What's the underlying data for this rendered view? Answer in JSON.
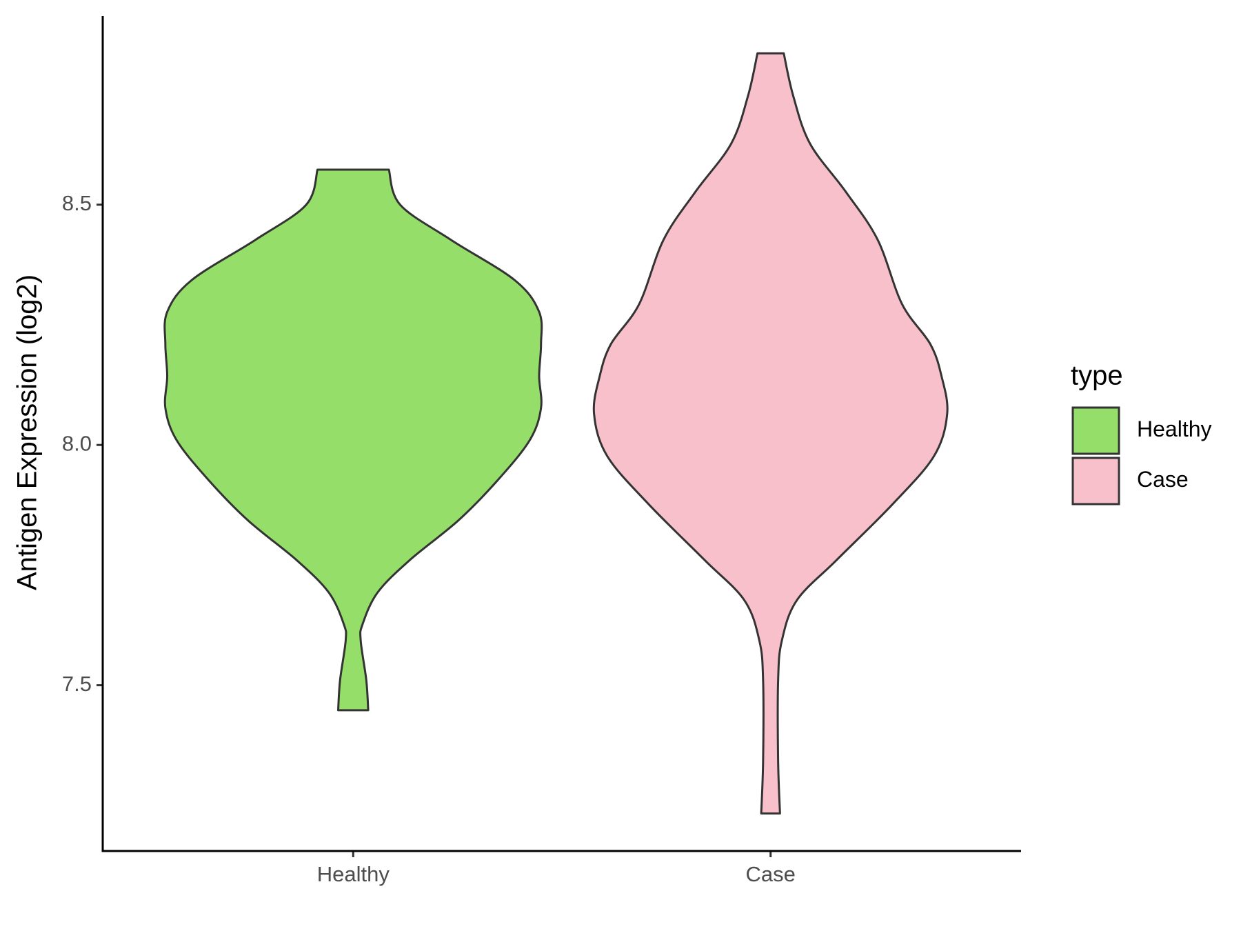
{
  "chart_data": {
    "type": "violin",
    "y_label": "Antigen Expression (log2)",
    "categories": [
      "Healthy",
      "Case"
    ],
    "series": [
      {
        "name": "Healthy",
        "color": "#95de6a",
        "y": [
          8.573,
          8.5,
          8.427,
          8.343,
          8.277,
          8.21,
          8.143,
          8.077,
          8.01,
          7.927,
          7.843,
          7.76,
          7.693,
          7.627,
          7.593,
          7.51,
          7.448
        ],
        "density": [
          0.19,
          0.25,
          0.52,
          0.86,
          0.99,
          1.0,
          0.99,
          1.0,
          0.94,
          0.77,
          0.56,
          0.3,
          0.13,
          0.05,
          0.04,
          0.07,
          0.08
        ]
      },
      {
        "name": "Case",
        "color": "#f8c0cb",
        "y": [
          8.815,
          8.727,
          8.627,
          8.527,
          8.427,
          8.293,
          8.21,
          8.143,
          8.065,
          7.977,
          7.877,
          7.76,
          7.677,
          7.593,
          7.51,
          7.343,
          7.233
        ],
        "density": [
          0.07,
          0.12,
          0.21,
          0.4,
          0.57,
          0.7,
          0.85,
          0.91,
          0.94,
          0.87,
          0.65,
          0.35,
          0.14,
          0.06,
          0.04,
          0.04,
          0.05
        ]
      }
    ],
    "ylim": [
      7.155,
      8.893
    ],
    "yticks": [
      7.5,
      {
        "value": 8,
        "label": "8.0"
      },
      8.5
    ],
    "legend_title": "type",
    "legend_position": "right"
  }
}
